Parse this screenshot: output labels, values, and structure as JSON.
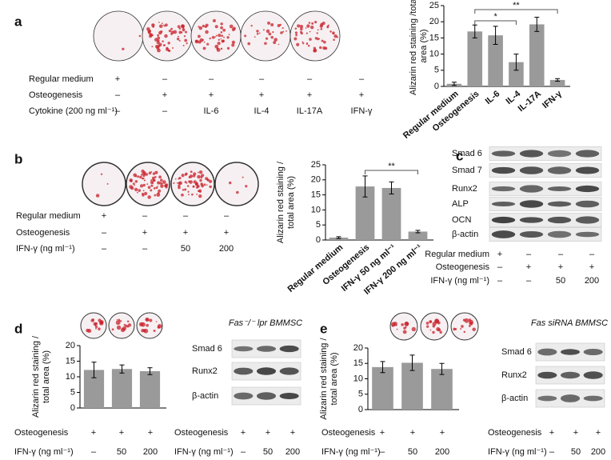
{
  "panels": [
    "a",
    "b",
    "c",
    "d",
    "e"
  ],
  "chart_data": [
    {
      "type": "bar",
      "ylabel": [
        "Alizarin red staining /total",
        "area (%)"
      ],
      "categories": [
        "Regular medium",
        "Osteogenesis",
        "IL-6",
        "IL-4",
        "IL-17A",
        "IFN-γ"
      ],
      "values": [
        0.8,
        17,
        15.8,
        7.5,
        19.2,
        2
      ],
      "errors": [
        0.5,
        2,
        2.8,
        2.5,
        2.2,
        0.4
      ],
      "color": "#9a9a9a",
      "ylim": [
        0,
        25
      ],
      "yticks": [
        0,
        5,
        10,
        15,
        20,
        25
      ],
      "comparisons": [
        {
          "between": [
            "Osteogenesis",
            "IL-4"
          ],
          "label": "*"
        },
        {
          "between": [
            "Osteogenesis",
            "IFN-γ"
          ],
          "label": "**"
        }
      ]
    },
    {
      "type": "bar",
      "ylabel": [
        "Alizarin red staining /",
        "total area (%)"
      ],
      "categories": [
        "Regular medium",
        "Osteogenesis",
        "IFN-γ 50 ng ml⁻¹",
        "IFN-γ 200 ng ml⁻¹"
      ],
      "values": [
        0.8,
        17.8,
        17.3,
        2.8
      ],
      "errors": [
        0.3,
        3.5,
        2,
        0.4
      ],
      "color": "#9a9a9a",
      "ylim": [
        0,
        25
      ],
      "yticks": [
        0,
        5,
        10,
        15,
        20,
        25
      ],
      "comparisons": [
        {
          "between": [
            "Osteogenesis",
            "IFN-γ 200 ng ml⁻¹"
          ],
          "label": "**"
        }
      ]
    },
    {
      "type": "bar",
      "ylabel": [
        "Alizarin red staining /",
        "total area (%)"
      ],
      "categories": [
        null,
        null,
        null
      ],
      "values": [
        12.2,
        12.5,
        11.8
      ],
      "errors": [
        2.5,
        1.3,
        1.1
      ],
      "color": "#9a9a9a",
      "ylim": [
        0,
        20
      ],
      "yticks": [
        0,
        5,
        10,
        15,
        20
      ],
      "comparisons": []
    },
    {
      "type": "bar",
      "ylabel": [
        "Alizarin red staining /",
        "total area (%)"
      ],
      "categories": [
        null,
        null,
        null
      ],
      "values": [
        13.8,
        15.2,
        13.2
      ],
      "errors": [
        1.8,
        2.5,
        1.8
      ],
      "color": "#9a9a9a",
      "ylim": [
        0,
        20
      ],
      "yticks": [
        0,
        5,
        10,
        15,
        20
      ],
      "comparisons": []
    }
  ],
  "conditions": [
    {
      "rows": [
        {
          "label": "Regular medium",
          "cells": [
            "+",
            "–",
            "–",
            "–",
            "–",
            "–"
          ]
        },
        {
          "label": "Osteogenesis",
          "cells": [
            "–",
            "+",
            "+",
            "+",
            "+",
            "+"
          ]
        },
        {
          "label": "Cytokine (200 ng ml⁻¹)",
          "cells": [
            "–",
            "–",
            "IL-6",
            "IL-4",
            "IL-17A",
            "IFN-γ"
          ]
        }
      ]
    },
    {
      "rows": [
        {
          "label": "Regular medium",
          "cells": [
            "+",
            "–",
            "–",
            "–"
          ]
        },
        {
          "label": "Osteogenesis",
          "cells": [
            "–",
            "+",
            "+",
            "+"
          ]
        },
        {
          "label": "IFN-γ (ng ml⁻¹)",
          "cells": [
            "–",
            "–",
            "50",
            "200"
          ]
        }
      ]
    },
    {
      "rows": [
        {
          "label": "Regular medium",
          "cells": [
            "+",
            "–",
            "–",
            "–"
          ]
        },
        {
          "label": "Osteogenesis",
          "cells": [
            "–",
            "+",
            "+",
            "+"
          ]
        },
        {
          "label": "IFN-γ (ng ml⁻¹)",
          "cells": [
            "–",
            "–",
            "50",
            "200"
          ]
        }
      ]
    },
    {
      "rows": [
        {
          "label": "Osteogenesis",
          "cells": [
            "+",
            "+",
            "+"
          ]
        },
        {
          "label": "IFN-γ (ng ml⁻¹)",
          "cells": [
            "–",
            "50",
            "200"
          ]
        }
      ]
    },
    {
      "rows": [
        {
          "label": "Osteogenesis",
          "cells": [
            "+",
            "+",
            "+"
          ]
        },
        {
          "label": "IFN-γ (ng ml⁻¹)",
          "cells": [
            "–",
            "50",
            "200"
          ]
        }
      ]
    },
    {
      "rows": [
        {
          "label": "Osteogenesis",
          "cells": [
            "+",
            "+",
            "+"
          ]
        },
        {
          "label": "IFN-γ (ng ml⁻¹)",
          "cells": [
            "–",
            "50",
            "200"
          ]
        }
      ]
    },
    {
      "rows": [
        {
          "label": "Osteogenesis",
          "cells": [
            "+",
            "+",
            "+"
          ]
        },
        {
          "label": "IFN-γ (ng ml⁻¹)",
          "cells": [
            "–",
            "50",
            "200"
          ]
        }
      ]
    }
  ],
  "blots": [
    {
      "title": null,
      "bands": [
        "Smad 6",
        "Smad 7",
        "Runx2",
        "ALP",
        "OCN",
        "β-actin"
      ]
    },
    {
      "title": "Fas⁻/⁻ lpr BMMSC",
      "bands": [
        "Smad 6",
        "Runx2",
        "β-actin"
      ]
    },
    {
      "title": "Fas siRNA BMMSC",
      "bands": [
        "Smad 6",
        "Runx2",
        "β-actin"
      ]
    }
  ]
}
